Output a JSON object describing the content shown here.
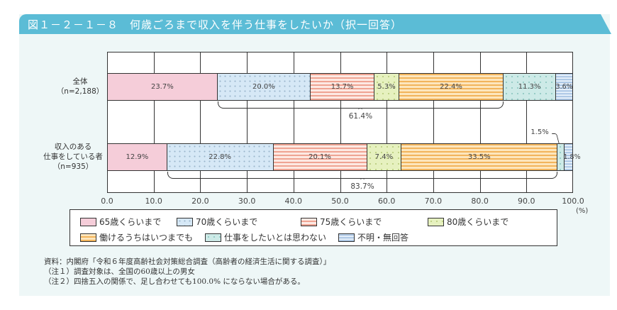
{
  "header": {
    "title": "図１－２－１－８　何歳ごろまで収入を伴う仕事をしたいか（択一回答）"
  },
  "chart_data": {
    "type": "bar",
    "orientation": "horizontal-stacked-100",
    "title": "何歳ごろまで収入を伴う仕事をしたいか（択一回答）",
    "figure_number": "図１－２－１－８",
    "categories": [
      "全体（n=2,188）",
      "収入のある仕事をしている者（n=935）"
    ],
    "category_lines": [
      [
        "全体",
        "（n=2,188）"
      ],
      [
        "収入のある",
        "仕事をしている者",
        "（n=935）"
      ]
    ],
    "series": [
      {
        "name": "65歳くらいまで",
        "color": "#f5cdd9",
        "values": [
          23.7,
          12.9
        ]
      },
      {
        "name": "70歳くらいまで",
        "color": "#d6e8f6",
        "values": [
          20.0,
          22.8
        ]
      },
      {
        "name": "75歳くらいまで",
        "color": "#f4b6a6",
        "values": [
          13.7,
          20.1
        ]
      },
      {
        "name": "80歳くらいまで",
        "color": "#e6f1bf",
        "values": [
          5.3,
          7.4
        ]
      },
      {
        "name": "働けるうちはいつまでも",
        "color": "#f7c27a",
        "values": [
          22.4,
          33.5
        ]
      },
      {
        "name": "仕事をしたいとは思わない",
        "color": "#cdeae7",
        "values": [
          11.3,
          1.5
        ]
      },
      {
        "name": "不明・無回答",
        "color": "#b7cfee",
        "values": [
          3.6,
          1.8
        ]
      }
    ],
    "value_labels": [
      [
        "23.7%",
        "20.0%",
        "13.7%",
        "5.3%",
        "22.4%",
        "11.3%",
        "3.6%"
      ],
      [
        "12.9%",
        "22.8%",
        "20.1%",
        "7.4%",
        "33.5%",
        "1.5%",
        "1.8%"
      ]
    ],
    "brackets": [
      {
        "row": 0,
        "from_series": 1,
        "to_series": 4,
        "label": "61.4%"
      },
      {
        "row": 1,
        "from_series": 1,
        "to_series": 4,
        "label": "83.7%"
      }
    ],
    "xlabel": "(%)",
    "ylabel": "",
    "xlim": [
      0,
      100
    ],
    "xticks": [
      "0.0",
      "10.0",
      "20.0",
      "30.0",
      "40.0",
      "50.0",
      "60.0",
      "70.0",
      "80.0",
      "90.0",
      "100.0"
    ],
    "grid": true,
    "legend_position": "bottom"
  },
  "legend": [
    "65歳くらいまで",
    "70歳くらいまで",
    "75歳くらいまで",
    "80歳くらいまで",
    "働けるうちはいつまでも",
    "仕事をしたいとは思わない",
    "不明・無回答"
  ],
  "notes": [
    "資料：内閣府「令和６年度高齢社会対策総合調査（高齢者の経済生活に関する調査）」",
    "（注１）調査対象は、全国の60歳以上の男女",
    "（注２）四捨五入の関係で、足し合わせても100.0% にならない場合がある。"
  ]
}
